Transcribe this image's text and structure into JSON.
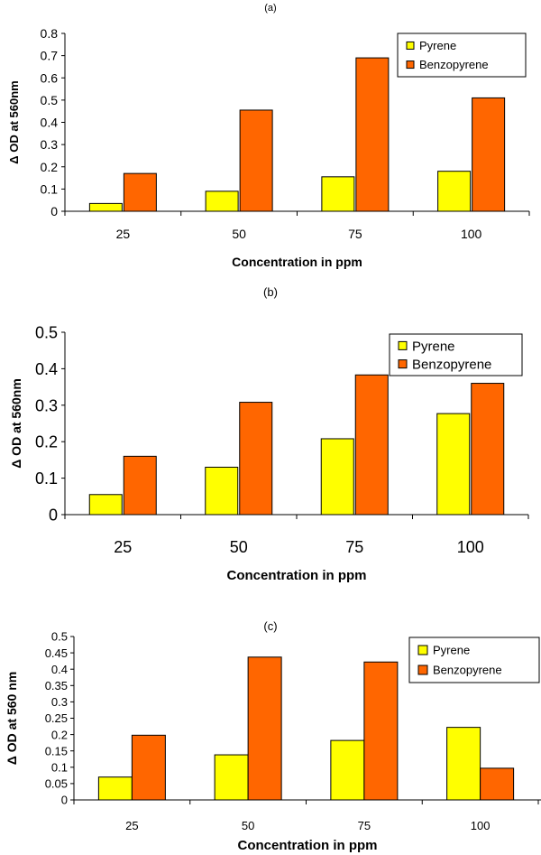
{
  "colors": {
    "pyrene": "#FFFF00",
    "benzopyrene": "#FF6600",
    "bar_stroke": "#000000"
  },
  "chart_data": [
    {
      "type": "bar",
      "panel": "(a)",
      "categories": [
        "25",
        "50",
        "75",
        "100"
      ],
      "series": [
        {
          "name": "Pyrene",
          "values": [
            0.035,
            0.09,
            0.155,
            0.18
          ]
        },
        {
          "name": "Benzopyrene",
          "values": [
            0.17,
            0.455,
            0.69,
            0.51
          ]
        }
      ],
      "yticks": [
        "0",
        "0.1",
        "0.2",
        "0.3",
        "0.4",
        "0.5",
        "0.6",
        "0.7",
        "0.8"
      ],
      "ylim": [
        0,
        0.8
      ],
      "xlabel": "Concentration in ppm",
      "ylabel": "Δ OD at 560nm",
      "legend": "top-right"
    },
    {
      "type": "bar",
      "panel": "(b)",
      "categories": [
        "25",
        "50",
        "75",
        "100"
      ],
      "series": [
        {
          "name": "Pyrene",
          "values": [
            0.055,
            0.13,
            0.208,
            0.277
          ]
        },
        {
          "name": "Benzopyrene",
          "values": [
            0.16,
            0.308,
            0.383,
            0.36
          ]
        }
      ],
      "yticks": [
        "0",
        "0.1",
        "0.2",
        "0.3",
        "0.4",
        "0.5"
      ],
      "ylim": [
        0,
        0.5
      ],
      "xlabel": "Concentration in ppm",
      "ylabel": "Δ OD at 560nm",
      "legend": "top-right"
    },
    {
      "type": "bar",
      "panel": "(c)",
      "categories": [
        "25",
        "50",
        "75",
        "100"
      ],
      "series": [
        {
          "name": "Pyrene",
          "values": [
            0.07,
            0.138,
            0.182,
            0.222
          ]
        },
        {
          "name": "Benzopyrene",
          "values": [
            0.198,
            0.437,
            0.422,
            0.097
          ]
        }
      ],
      "yticks": [
        "0",
        "0.05",
        "0.1",
        "0.15",
        "0.2",
        "0.25",
        "0.3",
        "0.35",
        "0.4",
        "0.45",
        "0.5"
      ],
      "ylim": [
        0,
        0.5
      ],
      "xlabel": "Concentration in ppm",
      "ylabel": "Δ OD at 560 nm",
      "legend": "top-right"
    }
  ]
}
